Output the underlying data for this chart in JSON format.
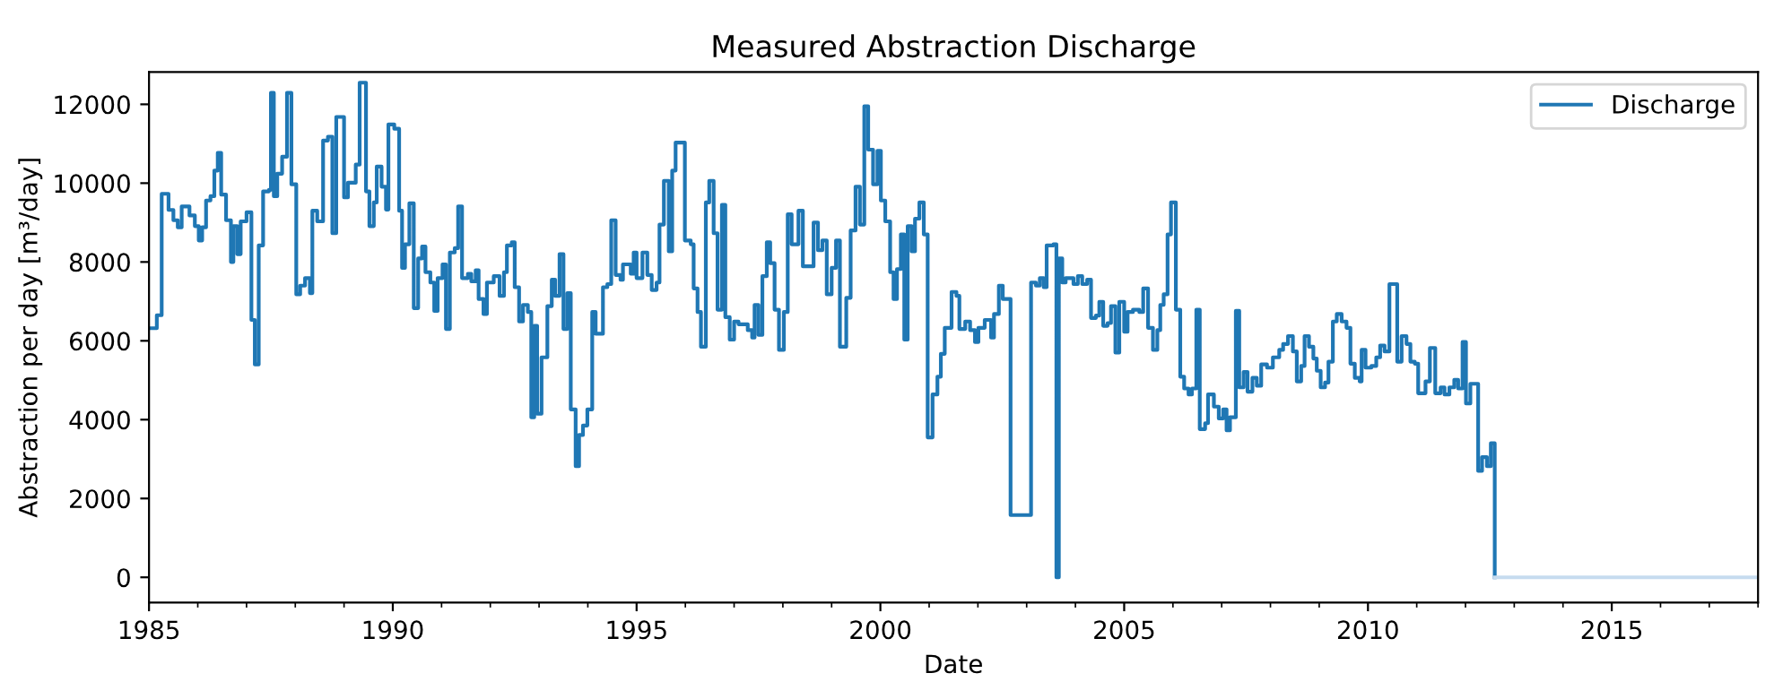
{
  "chart_data": {
    "type": "step",
    "title": "Measured Abstraction Discharge",
    "xlabel": "Date",
    "ylabel": "Abstraction per day [m³/day]",
    "xlim": [
      1985,
      2018
    ],
    "ylim": [
      -640,
      12820
    ],
    "xticks": [
      1985,
      {
        "value": 1986,
        "label": null
      },
      {
        "value": 1987,
        "label": null
      },
      {
        "value": 1988,
        "label": null
      },
      {
        "value": 1989,
        "label": null
      },
      1990,
      {
        "value": 1991,
        "label": null
      },
      {
        "value": 1992,
        "label": null
      },
      {
        "value": 1993,
        "label": null
      },
      {
        "value": 1994,
        "label": null
      },
      1995,
      {
        "value": 1996,
        "label": null
      },
      {
        "value": 1997,
        "label": null
      },
      {
        "value": 1998,
        "label": null
      },
      {
        "value": 1999,
        "label": null
      },
      2000,
      {
        "value": 2001,
        "label": null
      },
      {
        "value": 2002,
        "label": null
      },
      {
        "value": 2003,
        "label": null
      },
      {
        "value": 2004,
        "label": null
      },
      2005,
      {
        "value": 2006,
        "label": null
      },
      {
        "value": 2007,
        "label": null
      },
      {
        "value": 2008,
        "label": null
      },
      {
        "value": 2009,
        "label": null
      },
      2010,
      {
        "value": 2011,
        "label": null
      },
      {
        "value": 2012,
        "label": null
      },
      {
        "value": 2013,
        "label": null
      },
      {
        "value": 2014,
        "label": null
      },
      2015,
      {
        "value": 2016,
        "label": null
      },
      {
        "value": 2017,
        "label": null
      },
      {
        "value": 2018,
        "label": null
      }
    ],
    "yticks": [
      0,
      2000,
      4000,
      6000,
      8000,
      10000,
      12000
    ],
    "grid": false,
    "legend": "top right",
    "line_style": "solid",
    "marker": "none",
    "series": [
      {
        "name": "Discharge",
        "color": "#1f77b4",
        "x": [
          1985.0,
          1985.16,
          1985.26,
          1985.4,
          1985.5,
          1985.59,
          1985.67,
          1985.83,
          1985.94,
          1986.02,
          1986.09,
          1986.17,
          1986.26,
          1986.34,
          1986.41,
          1986.48,
          1986.58,
          1986.68,
          1986.73,
          1986.81,
          1986.88,
          1987.0,
          1987.1,
          1987.17,
          1987.25,
          1987.34,
          1987.46,
          1987.5,
          1987.56,
          1987.63,
          1987.73,
          1987.83,
          1987.92,
          1988.02,
          1988.1,
          1988.2,
          1988.3,
          1988.35,
          1988.45,
          1988.57,
          1988.67,
          1988.76,
          1988.84,
          1989.0,
          1989.08,
          1989.24,
          1989.32,
          1989.45,
          1989.52,
          1989.61,
          1989.67,
          1989.77,
          1989.86,
          1989.91,
          1990.03,
          1990.13,
          1990.19,
          1990.25,
          1990.34,
          1990.43,
          1990.52,
          1990.6,
          1990.67,
          1990.77,
          1990.85,
          1990.92,
          1991.02,
          1991.09,
          1991.17,
          1991.27,
          1991.34,
          1991.42,
          1991.54,
          1991.61,
          1991.7,
          1991.76,
          1991.86,
          1991.93,
          1992.07,
          1992.19,
          1992.28,
          1992.34,
          1992.44,
          1992.5,
          1992.59,
          1992.67,
          1992.77,
          1992.84,
          1992.9,
          1992.96,
          1993.05,
          1993.17,
          1993.26,
          1993.33,
          1993.42,
          1993.5,
          1993.58,
          1993.65,
          1993.75,
          1993.82,
          1993.9,
          1993.99,
          1994.09,
          1994.16,
          1994.31,
          1994.4,
          1994.48,
          1994.57,
          1994.67,
          1994.72,
          1994.88,
          1994.94,
          1995.0,
          1995.12,
          1995.22,
          1995.31,
          1995.41,
          1995.47,
          1995.56,
          1995.66,
          1995.73,
          1995.8,
          1995.99,
          1996.11,
          1996.17,
          1996.25,
          1996.32,
          1996.42,
          1996.49,
          1996.58,
          1996.66,
          1996.75,
          1996.82,
          1996.91,
          1997.0,
          1997.09,
          1997.28,
          1997.37,
          1997.42,
          1997.5,
          1997.58,
          1997.67,
          1997.74,
          1997.83,
          1997.92,
          1998.02,
          1998.1,
          1998.18,
          1998.32,
          1998.41,
          1998.63,
          1998.72,
          1998.81,
          1998.9,
          1999.0,
          1999.09,
          1999.17,
          1999.3,
          1999.39,
          1999.49,
          1999.58,
          1999.67,
          1999.75,
          1999.85,
          1999.94,
          2000.01,
          2000.1,
          2000.2,
          2000.27,
          2000.34,
          2000.42,
          2000.49,
          2000.56,
          2000.64,
          2000.71,
          2000.8,
          2000.89,
          2000.97,
          2001.07,
          2001.17,
          2001.24,
          2001.32,
          2001.46,
          2001.56,
          2001.62,
          2001.74,
          2001.84,
          2001.94,
          2002.01,
          2002.14,
          2002.27,
          2002.33,
          2002.43,
          2002.51,
          2002.67,
          2003.09,
          2003.19,
          2003.27,
          2003.35,
          2003.41,
          2003.55,
          2003.61,
          2003.66,
          2003.73,
          2003.8,
          2003.96,
          2004.05,
          2004.14,
          2004.24,
          2004.32,
          2004.42,
          2004.49,
          2004.57,
          2004.66,
          2004.73,
          2004.82,
          2004.9,
          2005.0,
          2005.07,
          2005.18,
          2005.31,
          2005.39,
          2005.49,
          2005.59,
          2005.68,
          2005.74,
          2005.81,
          2005.89,
          2005.96,
          2006.06,
          2006.15,
          2006.23,
          2006.32,
          2006.39,
          2006.48,
          2006.55,
          2006.66,
          2006.72,
          2006.84,
          2006.94,
          2007.03,
          2007.1,
          2007.17,
          2007.29,
          2007.36,
          2007.45,
          2007.53,
          2007.63,
          2007.72,
          2007.81,
          2007.93,
          2008.05,
          2008.18,
          2008.26,
          2008.36,
          2008.46,
          2008.54,
          2008.63,
          2008.7,
          2008.79,
          2008.88,
          2008.95,
          2009.03,
          2009.12,
          2009.19,
          2009.28,
          2009.36,
          2009.46,
          2009.56,
          2009.64,
          2009.73,
          2009.83,
          2009.87,
          2009.95,
          2010.07,
          2010.17,
          2010.25,
          2010.34,
          2010.44,
          2010.6,
          2010.69,
          2010.79,
          2010.87,
          2010.96,
          2011.03,
          2011.18,
          2011.27,
          2011.38,
          2011.49,
          2011.57,
          2011.67,
          2011.77,
          2011.85,
          2011.94,
          2012.01,
          2012.1,
          2012.26,
          2012.34,
          2012.44,
          2012.52,
          2012.6
        ],
        "values": [
          6320,
          6650,
          9730,
          9320,
          9060,
          8880,
          9410,
          9180,
          8910,
          8545,
          8880,
          9560,
          9670,
          10320,
          10770,
          9710,
          9060,
          8000,
          8910,
          8200,
          9030,
          9260,
          6530,
          5400,
          8420,
          9790,
          9830,
          12290,
          9670,
          10240,
          10670,
          12290,
          9970,
          7180,
          7400,
          7590,
          7210,
          9300,
          9030,
          11080,
          11180,
          8730,
          11680,
          9640,
          10010,
          10470,
          12550,
          9790,
          8910,
          9510,
          10420,
          9910,
          9330,
          11490,
          11380,
          9300,
          7850,
          8450,
          9490,
          6830,
          8090,
          8390,
          7740,
          7480,
          6760,
          7590,
          7940,
          6300,
          8240,
          8350,
          9410,
          7590,
          7700,
          7510,
          7790,
          7060,
          6680,
          7480,
          7640,
          7140,
          7740,
          8420,
          8500,
          7360,
          6490,
          6910,
          6730,
          4060,
          6380,
          4150,
          5580,
          6880,
          7550,
          7140,
          8200,
          6300,
          7210,
          4260,
          2820,
          3610,
          3850,
          4260,
          6730,
          6180,
          7360,
          7440,
          9060,
          7670,
          7550,
          7940,
          7700,
          8240,
          7590,
          8240,
          7670,
          7290,
          7480,
          8950,
          10060,
          8270,
          10320,
          11030,
          8545,
          8450,
          7330,
          6730,
          5850,
          9510,
          10060,
          8730,
          6790,
          9450,
          6600,
          6030,
          6490,
          6420,
          6270,
          6080,
          6910,
          6150,
          7640,
          8500,
          7970,
          6790,
          5770,
          6730,
          9210,
          8450,
          9300,
          7890,
          9000,
          8300,
          8545,
          7180,
          7850,
          8545,
          5850,
          7090,
          8800,
          9910,
          8950,
          11950,
          10850,
          9970,
          10820,
          9560,
          9030,
          7740,
          7060,
          7820,
          8700,
          6030,
          8910,
          8270,
          9100,
          9510,
          8700,
          3550,
          4640,
          5090,
          5670,
          6330,
          7240,
          7140,
          6300,
          6490,
          6270,
          5970,
          6330,
          6530,
          6080,
          6680,
          7400,
          7060,
          1580,
          7480,
          7400,
          7590,
          7360,
          8420,
          8450,
          0,
          8090,
          7480,
          7590,
          7440,
          7640,
          7440,
          7550,
          6580,
          6640,
          6990,
          6380,
          6450,
          6880,
          5700,
          6990,
          6230,
          6730,
          6790,
          6730,
          7330,
          6330,
          5770,
          6270,
          6910,
          7180,
          8700,
          9510,
          6790,
          5090,
          4790,
          4640,
          4790,
          6790,
          3760,
          3910,
          4640,
          4330,
          4030,
          4260,
          3730,
          4060,
          6760,
          4820,
          5210,
          4710,
          5060,
          4860,
          5400,
          5320,
          5580,
          5770,
          5920,
          6120,
          5730,
          4970,
          5360,
          6120,
          5850,
          5550,
          5240,
          4820,
          4940,
          5470,
          6490,
          6680,
          6490,
          6330,
          5420,
          5060,
          4970,
          5770,
          5320,
          5360,
          5580,
          5880,
          5730,
          7440,
          5470,
          6120,
          5920,
          5470,
          5420,
          4670,
          4970,
          5820,
          4670,
          4820,
          4640,
          4820,
          5010,
          4790,
          5970,
          4410,
          4910,
          2700,
          3050,
          2820,
          3400,
          0
        ]
      },
      {
        "color": "#c6dbef",
        "x": [
          2012.6,
          2018
        ],
        "values": [
          0,
          0
        ]
      }
    ]
  }
}
